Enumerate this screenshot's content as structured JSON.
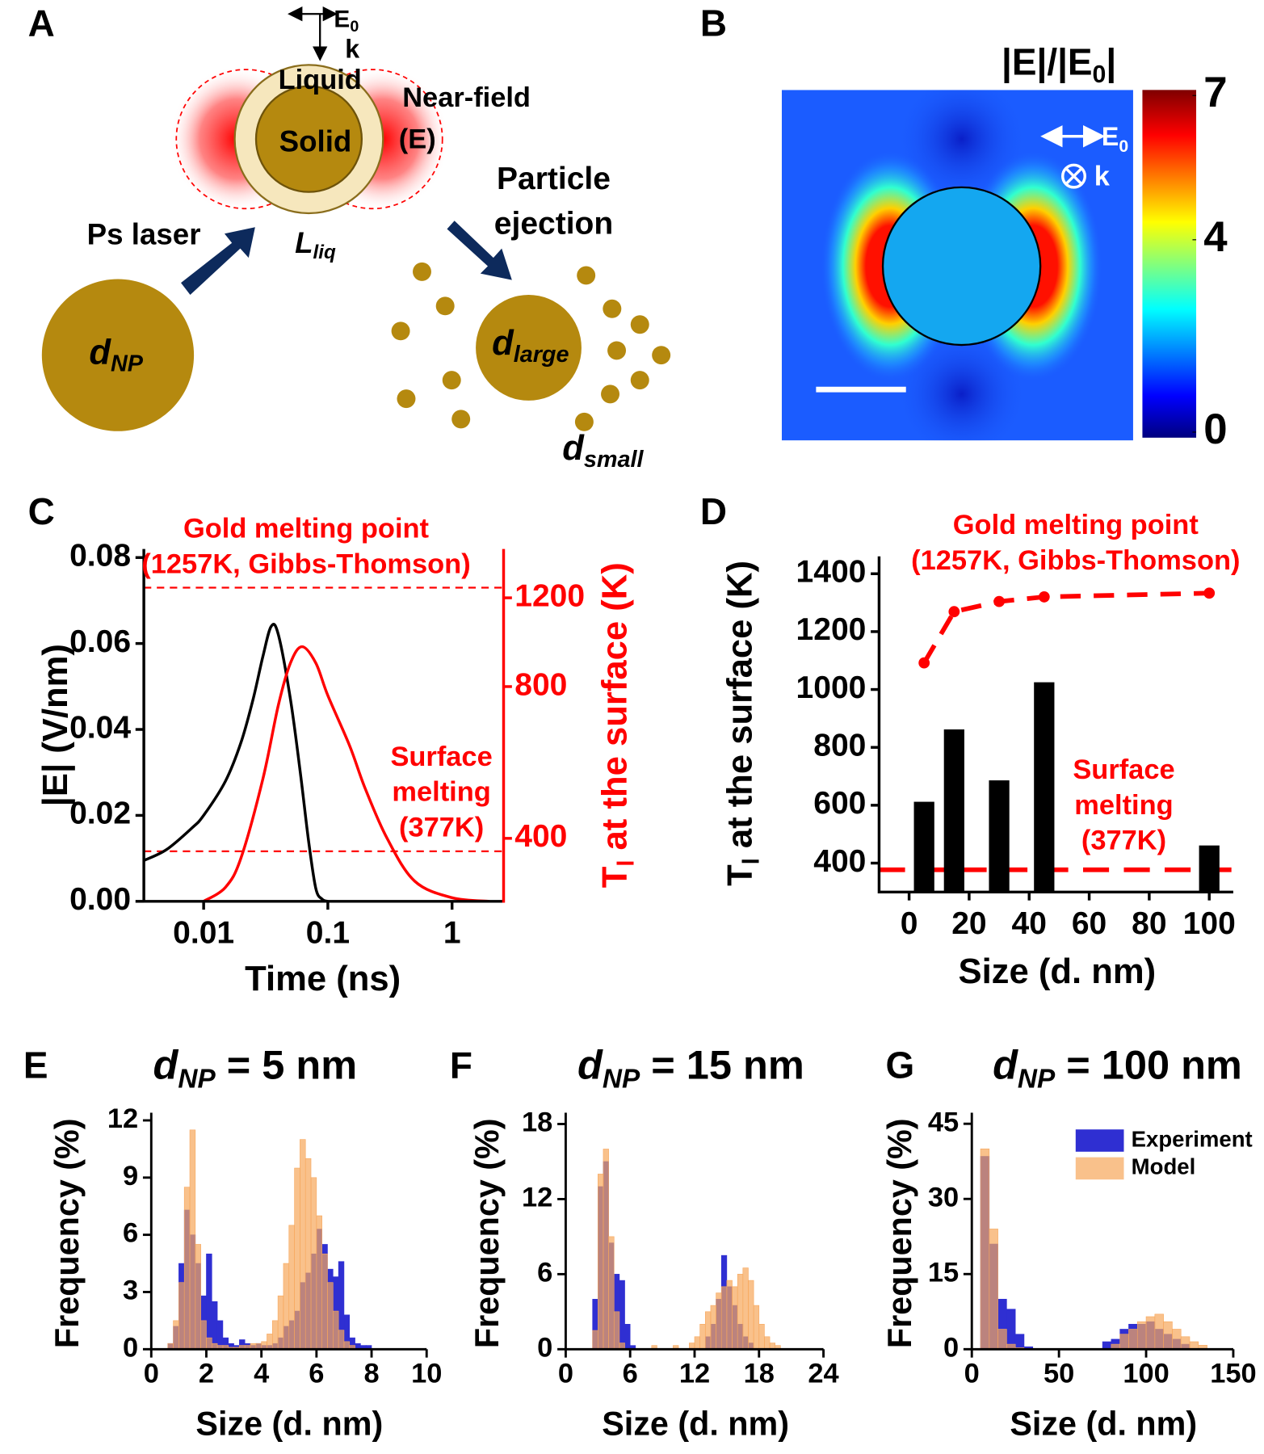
{
  "panel_a": {
    "label": "A",
    "e0": {
      "base": "E",
      "sub": "0"
    },
    "k": "k",
    "liquid": "Liquid",
    "near_field": [
      "Near-field",
      "(E)"
    ],
    "solid": "Solid",
    "ejection": [
      "Particle",
      "ejection"
    ],
    "laser": "Ps laser",
    "l_liq": {
      "base": "L",
      "sub": "liq"
    },
    "d_np": {
      "base": "d",
      "sub": "NP"
    },
    "d_large": {
      "base": "d",
      "sub": "large"
    },
    "d_small": {
      "base": "d",
      "sub": "small"
    }
  },
  "panel_b": {
    "label": "B",
    "colorbar_title": {
      "base": "|E|/|E",
      "sub": "0",
      "rest": "|"
    },
    "e0": {
      "base": "E",
      "sub": "0"
    },
    "k": "k",
    "colorbar_lim": [
      0,
      7
    ],
    "colorbar_ticks": [
      0,
      4,
      7
    ]
  },
  "chart_data": [
    {
      "type": "line",
      "panel_label": "C",
      "xlabel": "Time (ns)",
      "ylabel": "|E| (V/nm)",
      "y2label": {
        "base": "T",
        "sub": "l",
        "rest": " at the surface (K)"
      },
      "xscale": "log",
      "y2scale": "log",
      "xlim": [
        0.0033,
        2.6
      ],
      "xticks": [
        0.01,
        0.1,
        1
      ],
      "ylim": [
        0,
        0.082
      ],
      "yticks": [
        {
          "value": 0,
          "label": "0.00"
        },
        {
          "value": 0.02,
          "label": "0.02"
        },
        {
          "value": 0.04,
          "label": "0.04"
        },
        {
          "value": 0.06,
          "label": "0.06"
        },
        {
          "value": 0.08,
          "label": "0.08"
        }
      ],
      "y2lim": [
        300,
        1500
      ],
      "y2ticks": [
        400,
        800,
        1200
      ],
      "series": [
        {
          "color": "#000000",
          "x": [
            0.0033,
            0.005,
            0.008,
            0.01,
            0.015,
            0.02,
            0.025,
            0.03,
            0.035,
            0.04,
            0.05,
            0.06,
            0.07,
            0.08,
            0.09,
            0.1
          ],
          "values": [
            0.0095,
            0.012,
            0.017,
            0.02,
            0.028,
            0.037,
            0.047,
            0.057,
            0.064,
            0.062,
            0.047,
            0.03,
            0.014,
            0.003,
            0.0005,
            0
          ]
        },
        {
          "color": "#ff0000",
          "axis": "y2",
          "x": [
            0.01,
            0.015,
            0.02,
            0.03,
            0.04,
            0.05,
            0.062,
            0.08,
            0.1,
            0.15,
            0.2,
            0.3,
            0.5,
            1,
            2
          ],
          "values": [
            300,
            320,
            366,
            525,
            736,
            891,
            960,
            891,
            768,
            610,
            502,
            400,
            329,
            305,
            300
          ]
        }
      ],
      "hlines": [
        {
          "value": 1257,
          "axis": "y2",
          "color": "#ff0000"
        },
        {
          "value": 377,
          "axis": "y2",
          "color": "#ff0000"
        }
      ],
      "annotations": [
        {
          "lines": [
            "Gold melting point",
            "(1257K, Gibbs-Thomson)"
          ],
          "color": "#ff0000"
        },
        {
          "lines": [
            "Surface",
            "melting",
            "(377K)"
          ],
          "color": "#ff0000"
        }
      ]
    },
    {
      "type": "bar",
      "panel_label": "D",
      "xlabel": "Size (d. nm)",
      "ylabel": {
        "base": "T",
        "sub": "l",
        "rest": " at the surface (K)"
      },
      "xlim": [
        -10,
        108
      ],
      "xticks": [
        0,
        20,
        40,
        60,
        80,
        100
      ],
      "ylim": [
        300,
        1460
      ],
      "yticks": [
        400,
        600,
        800,
        1000,
        1200,
        1400
      ],
      "series": [
        {
          "type": "bar",
          "color": "#000000",
          "x": [
            5,
            15,
            30,
            45,
            100
          ],
          "values": [
            612,
            862,
            686,
            1025,
            461
          ]
        },
        {
          "type": "line",
          "color": "#ff0000",
          "dashed": true,
          "markers": true,
          "x": [
            5,
            15,
            30,
            45,
            100
          ],
          "values": [
            1092,
            1269,
            1304,
            1320,
            1333
          ]
        }
      ],
      "hlines": [
        {
          "value": 377,
          "color": "#ff0000"
        }
      ],
      "annotations": [
        {
          "lines": [
            "Gold melting point",
            "(1257K, Gibbs-Thomson)"
          ],
          "color": "#ff0000"
        },
        {
          "lines": [
            "Surface",
            "melting",
            "(377K)"
          ],
          "color": "#ff0000"
        }
      ]
    },
    {
      "type": "histogram",
      "panel_label": "E",
      "title": {
        "base": "d",
        "sub": "NP",
        "rest": " = 5 nm"
      },
      "xlabel": "Size (d. nm)",
      "ylabel": "Frequency (%)",
      "xlim": [
        0,
        10
      ],
      "xticks": [
        0,
        2,
        4,
        6,
        8,
        10
      ],
      "ylim": [
        0,
        12.4
      ],
      "yticks": [
        0,
        3,
        6,
        9,
        12
      ],
      "bins": [
        0,
        0.2,
        0.4,
        0.6,
        0.8,
        1,
        1.2,
        1.4,
        1.6,
        1.8,
        2,
        2.2,
        2.4,
        2.6,
        2.8,
        3,
        3.2,
        3.4,
        3.6,
        3.8,
        4,
        4.2,
        4.4,
        4.6,
        4.8,
        5,
        5.2,
        5.4,
        5.6,
        5.8,
        6,
        6.2,
        6.4,
        6.6,
        6.8,
        7,
        7.2,
        7.4,
        7.6,
        7.8,
        8,
        8.2,
        8.4,
        8.6,
        8.8,
        9,
        9.2,
        9.4,
        9.6,
        9.8,
        10
      ],
      "series": [
        {
          "color": "#2f2fd2",
          "values": [
            0,
            0,
            0,
            0.3,
            1.2,
            4.5,
            7.3,
            6.0,
            4.5,
            2.8,
            5.0,
            2.5,
            1.5,
            0.6,
            0.3,
            0.2,
            0.5,
            0.3,
            0.2,
            0.3,
            0.2,
            0.2,
            0.3,
            0.6,
            1.2,
            1.5,
            2.0,
            3.5,
            4.0,
            5.0,
            6.3,
            5.5,
            4.2,
            3.8,
            4.6,
            1.8,
            0.6,
            0.3,
            0.2,
            0.2,
            0,
            0,
            0,
            0,
            0,
            0,
            0,
            0,
            0,
            0
          ]
        },
        {
          "color": "#f7a65a",
          "values": [
            0,
            0,
            0,
            0.3,
            1.5,
            3.5,
            8.5,
            11.5,
            5.5,
            1.5,
            0.6,
            0.3,
            0.2,
            0.2,
            0.1,
            0.1,
            0.2,
            0.2,
            0.3,
            0.3,
            0.4,
            0.8,
            1.5,
            2.8,
            4.5,
            6.5,
            9.5,
            11.0,
            10.0,
            9.0,
            7.0,
            5.0,
            3.5,
            2.0,
            1.0,
            0.4,
            0.2,
            0,
            0,
            0,
            0,
            0,
            0,
            0,
            0,
            0,
            0,
            0,
            0,
            0
          ]
        }
      ]
    },
    {
      "type": "histogram",
      "panel_label": "F",
      "title": {
        "base": "d",
        "sub": "NP",
        "rest": " = 15 nm"
      },
      "xlabel": "Size (d. nm)",
      "ylabel": "Frequency (%)",
      "xlim": [
        0,
        24
      ],
      "xticks": [
        0,
        6,
        12,
        18,
        24
      ],
      "ylim": [
        0,
        18.9
      ],
      "yticks": [
        0,
        6,
        12,
        18
      ],
      "bins": [
        0,
        0.5,
        1,
        1.5,
        2,
        2.5,
        3,
        3.5,
        4,
        4.5,
        5,
        5.5,
        6,
        6.5,
        7,
        7.5,
        8,
        8.5,
        9,
        9.5,
        10,
        10.5,
        11,
        11.5,
        12,
        12.5,
        13,
        13.5,
        14,
        14.5,
        15,
        15.5,
        16,
        16.5,
        17,
        17.5,
        18,
        18.5,
        19,
        19.5,
        20,
        20.5,
        21,
        21.5,
        22,
        22.5,
        23,
        23.5,
        24
      ],
      "series": [
        {
          "color": "#2f2fd2",
          "values": [
            0,
            0,
            0,
            0,
            0,
            4.0,
            13.0,
            15.0,
            8.5,
            6.0,
            5.5,
            2.0,
            0.3,
            0,
            0,
            0,
            0,
            0,
            0,
            0,
            0,
            0,
            0,
            0,
            0,
            0,
            1.0,
            2.0,
            4.0,
            7.5,
            5.0,
            3.5,
            2.0,
            1.0,
            0.5,
            0,
            0,
            0,
            0,
            0,
            0,
            0,
            0,
            0,
            0,
            0,
            0,
            0
          ]
        },
        {
          "color": "#f7a65a",
          "values": [
            0,
            0,
            0,
            0,
            0,
            1.5,
            14.0,
            16.0,
            9.0,
            3.0,
            0.5,
            0,
            0,
            0,
            0,
            0,
            0.3,
            0,
            0,
            0,
            0.3,
            0,
            0,
            0.5,
            1.0,
            2.0,
            3.0,
            3.5,
            4.5,
            5.0,
            5.5,
            5.0,
            6.0,
            6.5,
            5.5,
            3.5,
            2.0,
            1.0,
            0.5,
            0.3,
            0,
            0,
            0,
            0,
            0,
            0,
            0,
            0
          ]
        }
      ]
    },
    {
      "type": "histogram",
      "panel_label": "G",
      "title": {
        "base": "d",
        "sub": "NP",
        "rest": " = 100 nm"
      },
      "xlabel": "Size (d. nm)",
      "ylabel": "Frequency (%)",
      "xlim": [
        0,
        150
      ],
      "xticks": [
        0,
        50,
        100,
        150
      ],
      "ylim": [
        0,
        47.2
      ],
      "yticks": [
        0,
        15,
        30,
        45
      ],
      "legend": "upper right",
      "bins": [
        0,
        5,
        10,
        15,
        20,
        25,
        30,
        35,
        40,
        45,
        50,
        55,
        60,
        65,
        70,
        75,
        80,
        85,
        90,
        95,
        100,
        105,
        110,
        115,
        120,
        125,
        130,
        135,
        140,
        145,
        150
      ],
      "series": [
        {
          "name": "Experiment",
          "color": "#2f2fd2",
          "values": [
            0,
            38.5,
            21,
            10,
            8,
            3,
            0.5,
            0,
            0,
            0,
            0,
            0,
            0,
            0,
            0,
            1.5,
            2,
            4,
            5,
            5,
            5.5,
            4,
            3,
            2,
            1,
            0,
            0,
            0,
            0,
            0
          ]
        },
        {
          "name": "Model",
          "color": "#f7a65a",
          "values": [
            0,
            40,
            24,
            4,
            1,
            0.3,
            0,
            0,
            0,
            0,
            0,
            0,
            0,
            0,
            0,
            0,
            1,
            3,
            4,
            5.5,
            6.5,
            7,
            5.5,
            4,
            2.5,
            1.5,
            0.8,
            0,
            0,
            0
          ]
        }
      ]
    }
  ]
}
